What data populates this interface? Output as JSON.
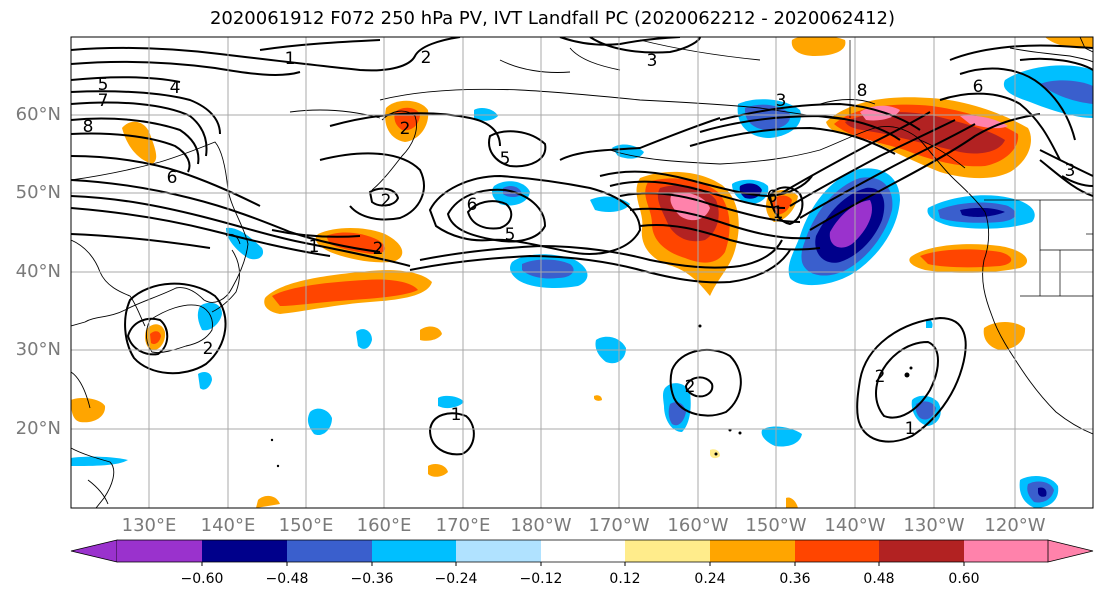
{
  "title": "2020061912 F072 250 hPa PV, IVT Landfall PC (2020062212 - 2020062412)",
  "lat_labels": [
    "60°N",
    "50°N",
    "40°N",
    "30°N",
    "20°N"
  ],
  "lon_labels": [
    "130°E",
    "140°E",
    "150°E",
    "160°E",
    "170°E",
    "180°W",
    "170°W",
    "160°W",
    "150°W",
    "140°W",
    "130°W",
    "120°W"
  ],
  "contour_labels": [
    "2",
    "1",
    "3",
    "5",
    "4",
    "7",
    "8",
    "6",
    "5",
    "2",
    "6",
    "5",
    "2",
    "1",
    "2",
    "3",
    "2",
    "1",
    "2",
    "1",
    "8",
    "6",
    "3",
    "6",
    "1",
    "2"
  ],
  "colorbar": {
    "tick_labels": [
      "−0.60",
      "−0.48",
      "−0.36",
      "−0.24",
      "−0.12",
      "0.12",
      "0.24",
      "0.36",
      "0.48",
      "0.60"
    ],
    "colors": [
      "#9a32cd",
      "#00008b",
      "#3a5fcd",
      "#00bfff",
      "#b0e2ff",
      "#ffffff",
      "#ffec8b",
      "#ffa500",
      "#ff4500",
      "#b22222",
      "#ff82ab"
    ]
  },
  "colors": {
    "grid": "#a9a9a9",
    "contour": "#000000",
    "axis_label": "#7a7a7a"
  }
}
